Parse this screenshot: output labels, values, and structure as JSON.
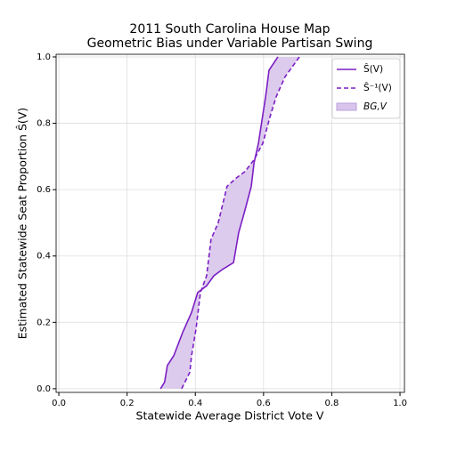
{
  "chart_data": {
    "type": "line",
    "title": [
      "2011 South Carolina House Map",
      "Geometric Bias under Variable Partisan Swing"
    ],
    "xlabel": "Statewide Average District Vote V",
    "ylabel": "Estimated Statewide Seat Proportion Ŝ(V)",
    "xlim": [
      -0.008,
      1.013
    ],
    "ylim": [
      -0.011,
      1.008
    ],
    "xticks": [
      {
        "value": 0,
        "label": "0.0"
      },
      0.2,
      0.4,
      0.6,
      0.8,
      {
        "value": 1,
        "label": "1.0"
      }
    ],
    "yticks": [
      {
        "value": 0,
        "label": "0.0"
      },
      0.2,
      0.4,
      0.6,
      0.8,
      {
        "value": 1,
        "label": "1.0"
      }
    ],
    "grid": true,
    "legend": "upper right",
    "series": [
      {
        "name": "Ŝ(V)",
        "color": "#7b1fc4",
        "dash": false,
        "x": [
          0.298,
          0.31,
          0.318,
          0.337,
          0.363,
          0.389,
          0.407,
          0.433,
          0.454,
          0.48,
          0.512,
          0.527,
          0.546,
          0.564,
          0.572,
          0.585,
          0.606,
          0.616,
          0.642
        ],
        "values": [
          0,
          0.02,
          0.07,
          0.1,
          0.17,
          0.23,
          0.29,
          0.31,
          0.34,
          0.36,
          0.38,
          0.47,
          0.54,
          0.61,
          0.68,
          0.74,
          0.88,
          0.96,
          1.0
        ]
      },
      {
        "name": "Ŝ⁻¹(V)",
        "color": "#7b1fc4",
        "dash": true,
        "x": [
          0.36,
          0.384,
          0.389,
          0.402,
          0.415,
          0.433,
          0.446,
          0.467,
          0.493,
          0.52,
          0.546,
          0.572,
          0.598,
          0.619,
          0.637,
          0.663,
          0.705
        ],
        "values": [
          0,
          0.05,
          0.1,
          0.18,
          0.29,
          0.34,
          0.45,
          0.5,
          0.61,
          0.635,
          0.655,
          0.69,
          0.74,
          0.82,
          0.88,
          0.94,
          1.0
        ]
      }
    ],
    "fill": {
      "name": "BG,V",
      "color": "#d9c5ec"
    }
  }
}
